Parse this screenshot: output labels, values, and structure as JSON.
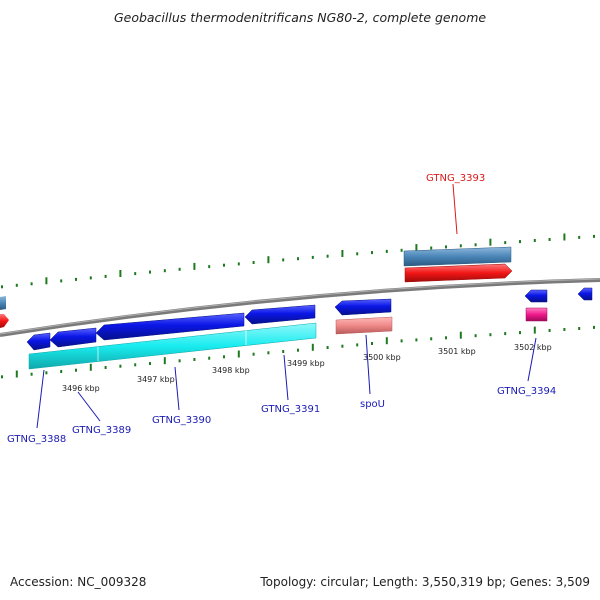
{
  "title": "Geobacillus thermodenitrificans NG80-2, complete genome",
  "footer": {
    "accession": "Accession: NC_009328",
    "topology": "Topology: circular; Length: 3,550,319 bp; Genes: 3,509"
  },
  "colors": {
    "blue_gene": "#0a16e6",
    "cyan_gene": "#19ecef",
    "red_gene": "#f21616",
    "steel_gene": "#4a86b8",
    "pink_gene": "#ef8a8a",
    "magenta_gene": "#ef1a8c",
    "label_blue": "#1a1ab4",
    "label_red": "#d91a1a",
    "tick_green": "#1f7a1f",
    "backbone": "#7a7a7a"
  },
  "kbp_ticks": [
    "3496 kbp",
    "3497 kbp",
    "3498 kbp",
    "3499 kbp",
    "3500 kbp",
    "3501 kbp",
    "3502 kbp"
  ],
  "gene_labels": [
    {
      "id": "GTNG_3388",
      "text": "GTNG_3388",
      "color": "label_blue"
    },
    {
      "id": "GTNG_3389",
      "text": "GTNG_3389",
      "color": "label_blue"
    },
    {
      "id": "GTNG_3390",
      "text": "GTNG_3390",
      "color": "label_blue"
    },
    {
      "id": "GTNG_3391",
      "text": "GTNG_3391",
      "color": "label_blue"
    },
    {
      "id": "spoU",
      "text": "spoU",
      "color": "label_blue"
    },
    {
      "id": "GTNG_3394",
      "text": "GTNG_3394",
      "color": "label_blue"
    },
    {
      "id": "GTNG_3393",
      "text": "GTNG_3393",
      "color": "label_red"
    }
  ]
}
